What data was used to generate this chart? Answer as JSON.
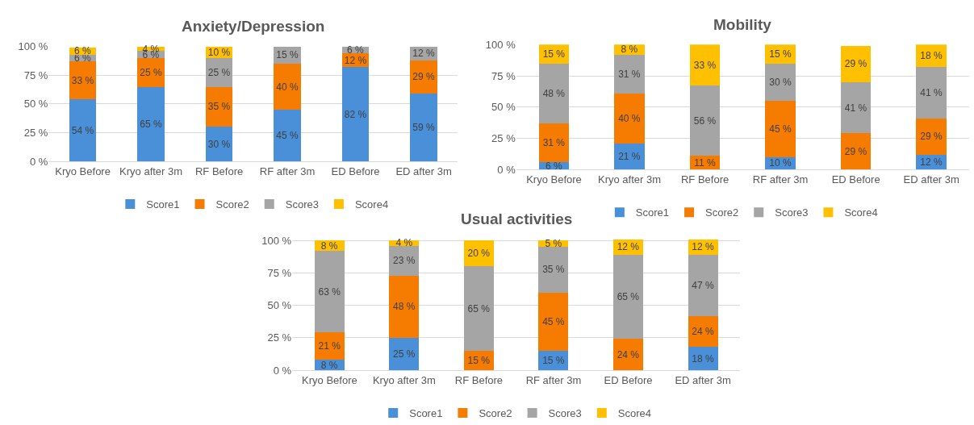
{
  "chart_data": [
    {
      "type": "bar",
      "stacked": true,
      "title": "Anxiety/Depression",
      "categories": [
        "Kryo Before",
        "Kryo after 3m",
        "RF Before",
        "RF after 3m",
        "ED Before",
        "ED after 3m"
      ],
      "ylim": [
        0,
        100
      ],
      "yticks": [
        {
          "value": 0,
          "label": "0 %"
        },
        {
          "value": 25,
          "label": "25 %"
        },
        {
          "value": 50,
          "label": "50 %"
        },
        {
          "value": 75,
          "label": "75 %"
        },
        {
          "value": 100,
          "label": "100 %"
        }
      ],
      "grid": "y",
      "legend": "bottom",
      "series": [
        {
          "name": "Score1",
          "color": "#4a90d9",
          "values": [
            54,
            65,
            30,
            45,
            82,
            59
          ],
          "value_labels": [
            "54 %",
            "65 %",
            "30 %",
            "45 %",
            "82 %",
            "59 %"
          ]
        },
        {
          "name": "Score2",
          "color": "#f57c00",
          "values": [
            33,
            25,
            35,
            40,
            12,
            29
          ],
          "value_labels": [
            "33 %",
            "25 %",
            "35 %",
            "40 %",
            "12 %",
            "29 %"
          ]
        },
        {
          "name": "Score3",
          "color": "#a5a5a5",
          "values": [
            6,
            6,
            25,
            15,
            6,
            12
          ],
          "value_labels": [
            "6 %",
            "6 %",
            "25 %",
            "15 %",
            "6 %",
            "12 %"
          ]
        },
        {
          "name": "Score4",
          "color": "#ffc000",
          "values": [
            6,
            4,
            10,
            null,
            null,
            null
          ],
          "value_labels": [
            "6 %",
            "4 %",
            "10 %",
            null,
            null,
            null
          ]
        }
      ]
    },
    {
      "type": "bar",
      "stacked": true,
      "title": "Mobility",
      "categories": [
        "Kryo Before",
        "Kryo after 3m",
        "RF Before",
        "RF after 3m",
        "ED Before",
        "ED after 3m"
      ],
      "ylim": [
        0,
        100
      ],
      "yticks": [
        {
          "value": 0,
          "label": "0 %"
        },
        {
          "value": 25,
          "label": "25 %"
        },
        {
          "value": 50,
          "label": "50 %"
        },
        {
          "value": 75,
          "label": "75 %"
        },
        {
          "value": 100,
          "label": "100 %"
        }
      ],
      "grid": "y",
      "legend": "bottom",
      "series": [
        {
          "name": "Score1",
          "color": "#4a90d9",
          "values": [
            6,
            21,
            null,
            10,
            null,
            12
          ],
          "value_labels": [
            "6 %",
            "21 %",
            null,
            "10 %",
            null,
            "12 %"
          ]
        },
        {
          "name": "Score2",
          "color": "#f57c00",
          "values": [
            31,
            40,
            11,
            45,
            29,
            29
          ],
          "value_labels": [
            "31 %",
            "40 %",
            "11 %",
            "45 %",
            "29 %",
            "29 %"
          ]
        },
        {
          "name": "Score3",
          "color": "#a5a5a5",
          "values": [
            48,
            31,
            56,
            30,
            41,
            41
          ],
          "value_labels": [
            "48 %",
            "31 %",
            "56 %",
            "30 %",
            "41 %",
            "41 %"
          ]
        },
        {
          "name": "Score4",
          "color": "#ffc000",
          "values": [
            15,
            8,
            33,
            15,
            29,
            18
          ],
          "value_labels": [
            "15 %",
            "8 %",
            "33 %",
            "15 %",
            "29 %",
            "18 %"
          ]
        }
      ]
    },
    {
      "type": "bar",
      "stacked": true,
      "title": "Usual activities",
      "categories": [
        "Kryo Before",
        "Kryo after 3m",
        "RF Before",
        "RF after 3m",
        "ED Before",
        "ED after 3m"
      ],
      "ylim": [
        0,
        101
      ],
      "yticks": [
        {
          "value": 0,
          "label": "0 %"
        },
        {
          "value": 25,
          "label": "25 %"
        },
        {
          "value": 50,
          "label": "50 %"
        },
        {
          "value": 75,
          "label": "75 %"
        },
        {
          "value": 100,
          "label": "100 %"
        }
      ],
      "grid": "y",
      "legend": "bottom",
      "series": [
        {
          "name": "Score1",
          "color": "#4a90d9",
          "values": [
            8,
            25,
            null,
            15,
            null,
            18
          ],
          "value_labels": [
            "8 %",
            "25 %",
            null,
            "15 %",
            null,
            "18 %"
          ]
        },
        {
          "name": "Score2",
          "color": "#f57c00",
          "values": [
            21,
            48,
            15,
            45,
            24,
            24
          ],
          "value_labels": [
            "21 %",
            "48 %",
            "15 %",
            "45 %",
            "24 %",
            "24 %"
          ]
        },
        {
          "name": "Score3",
          "color": "#a5a5a5",
          "values": [
            63,
            23,
            65,
            35,
            65,
            47
          ],
          "value_labels": [
            "63 %",
            "23 %",
            "65 %",
            "35 %",
            "65 %",
            "47 %"
          ]
        },
        {
          "name": "Score4",
          "color": "#ffc000",
          "values": [
            8,
            4,
            20,
            5,
            12,
            12
          ],
          "value_labels": [
            "8 %",
            "4 %",
            "20 %",
            "5 %",
            "12 %",
            "12 %"
          ]
        }
      ]
    }
  ]
}
